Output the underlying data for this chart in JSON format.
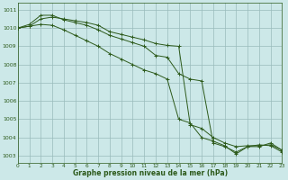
{
  "title": "Graphe pression niveau de la mer (hPa)",
  "bg_color": "#cce8e8",
  "grid_color": "#99bbbb",
  "line_color": "#2d5a1b",
  "xlim": [
    0,
    23
  ],
  "ylim": [
    1002.6,
    1011.4
  ],
  "yticks": [
    1003,
    1004,
    1005,
    1006,
    1007,
    1008,
    1009,
    1010,
    1011
  ],
  "xticks": [
    0,
    1,
    2,
    3,
    4,
    5,
    6,
    7,
    8,
    9,
    10,
    11,
    12,
    13,
    14,
    15,
    16,
    17,
    18,
    19,
    20,
    21,
    22,
    23
  ],
  "series": [
    [
      1010.0,
      1010.1,
      1010.5,
      1010.6,
      1010.5,
      1010.4,
      1010.3,
      1010.15,
      1009.8,
      1009.65,
      1009.5,
      1009.35,
      1009.15,
      1009.05,
      1009.0,
      1004.7,
      1004.5,
      1004.0,
      1003.7,
      1003.5,
      1003.55,
      1003.55,
      1003.6,
      1003.3
    ],
    [
      1010.0,
      1010.2,
      1010.7,
      1010.7,
      1010.45,
      1010.3,
      1010.15,
      1009.9,
      1009.6,
      1009.4,
      1009.2,
      1009.0,
      1008.5,
      1008.4,
      1007.5,
      1007.2,
      1007.1,
      1003.7,
      1003.5,
      1003.2,
      1003.5,
      1003.6,
      1003.55,
      1003.2
    ],
    [
      1010.0,
      1010.1,
      1010.2,
      1010.15,
      1009.9,
      1009.6,
      1009.3,
      1009.0,
      1008.6,
      1008.3,
      1008.0,
      1007.7,
      1007.5,
      1007.2,
      1005.0,
      1004.8,
      1004.0,
      1003.8,
      1003.55,
      1003.1,
      1003.5,
      1003.5,
      1003.7,
      1003.3
    ]
  ]
}
